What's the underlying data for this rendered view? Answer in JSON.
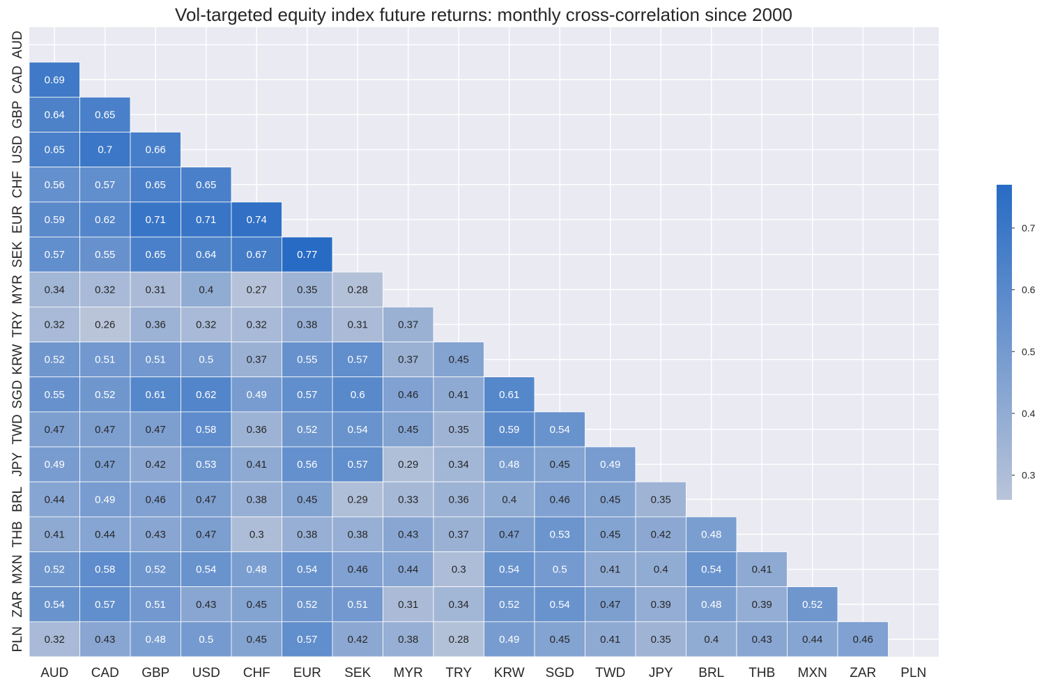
{
  "chart_data": {
    "type": "heatmap",
    "title": "Vol-targeted equity index future returns: monthly cross-correlation since 2000",
    "labels": [
      "AUD",
      "CAD",
      "GBP",
      "USD",
      "CHF",
      "EUR",
      "SEK",
      "MYR",
      "TRY",
      "KRW",
      "SGD",
      "TWD",
      "JPY",
      "BRL",
      "THB",
      "MXN",
      "ZAR",
      "PLN"
    ],
    "mask": "upper-triangle-including-diagonal",
    "values": [
      [],
      [
        0.69
      ],
      [
        0.64,
        0.65
      ],
      [
        0.65,
        0.7,
        0.66
      ],
      [
        0.56,
        0.57,
        0.65,
        0.65
      ],
      [
        0.59,
        0.62,
        0.71,
        0.71,
        0.74
      ],
      [
        0.57,
        0.55,
        0.65,
        0.64,
        0.67,
        0.77
      ],
      [
        0.34,
        0.32,
        0.31,
        0.4,
        0.27,
        0.35,
        0.28
      ],
      [
        0.32,
        0.26,
        0.36,
        0.32,
        0.32,
        0.38,
        0.31,
        0.37
      ],
      [
        0.52,
        0.51,
        0.51,
        0.5,
        0.37,
        0.55,
        0.57,
        0.37,
        0.45
      ],
      [
        0.55,
        0.52,
        0.61,
        0.62,
        0.49,
        0.57,
        0.6,
        0.46,
        0.41,
        0.61
      ],
      [
        0.47,
        0.47,
        0.47,
        0.58,
        0.36,
        0.52,
        0.54,
        0.45,
        0.35,
        0.59,
        0.54
      ],
      [
        0.49,
        0.47,
        0.42,
        0.53,
        0.41,
        0.56,
        0.57,
        0.29,
        0.34,
        0.48,
        0.45,
        0.49
      ],
      [
        0.44,
        0.49,
        0.46,
        0.47,
        0.38,
        0.45,
        0.29,
        0.33,
        0.36,
        0.4,
        0.46,
        0.45,
        0.35
      ],
      [
        0.41,
        0.44,
        0.43,
        0.47,
        0.3,
        0.38,
        0.38,
        0.43,
        0.37,
        0.47,
        0.53,
        0.45,
        0.42,
        0.48
      ],
      [
        0.52,
        0.58,
        0.52,
        0.54,
        0.48,
        0.54,
        0.46,
        0.44,
        0.3,
        0.54,
        0.5,
        0.41,
        0.4,
        0.54,
        0.41
      ],
      [
        0.54,
        0.57,
        0.51,
        0.43,
        0.45,
        0.52,
        0.51,
        0.31,
        0.34,
        0.52,
        0.54,
        0.47,
        0.39,
        0.48,
        0.39,
        0.52
      ],
      [
        0.32,
        0.43,
        0.48,
        0.5,
        0.45,
        0.57,
        0.42,
        0.38,
        0.28,
        0.49,
        0.45,
        0.41,
        0.35,
        0.4,
        0.43,
        0.44,
        0.46
      ]
    ],
    "colorbar": {
      "range": [
        0.26,
        0.77
      ],
      "ticks": [
        "0.3",
        "0.4",
        "0.5",
        "0.6",
        "0.7"
      ],
      "low_color": "#b9c4d9",
      "high_color": "#286bc4"
    },
    "background_color": "#eaeaf2",
    "grid": true
  }
}
